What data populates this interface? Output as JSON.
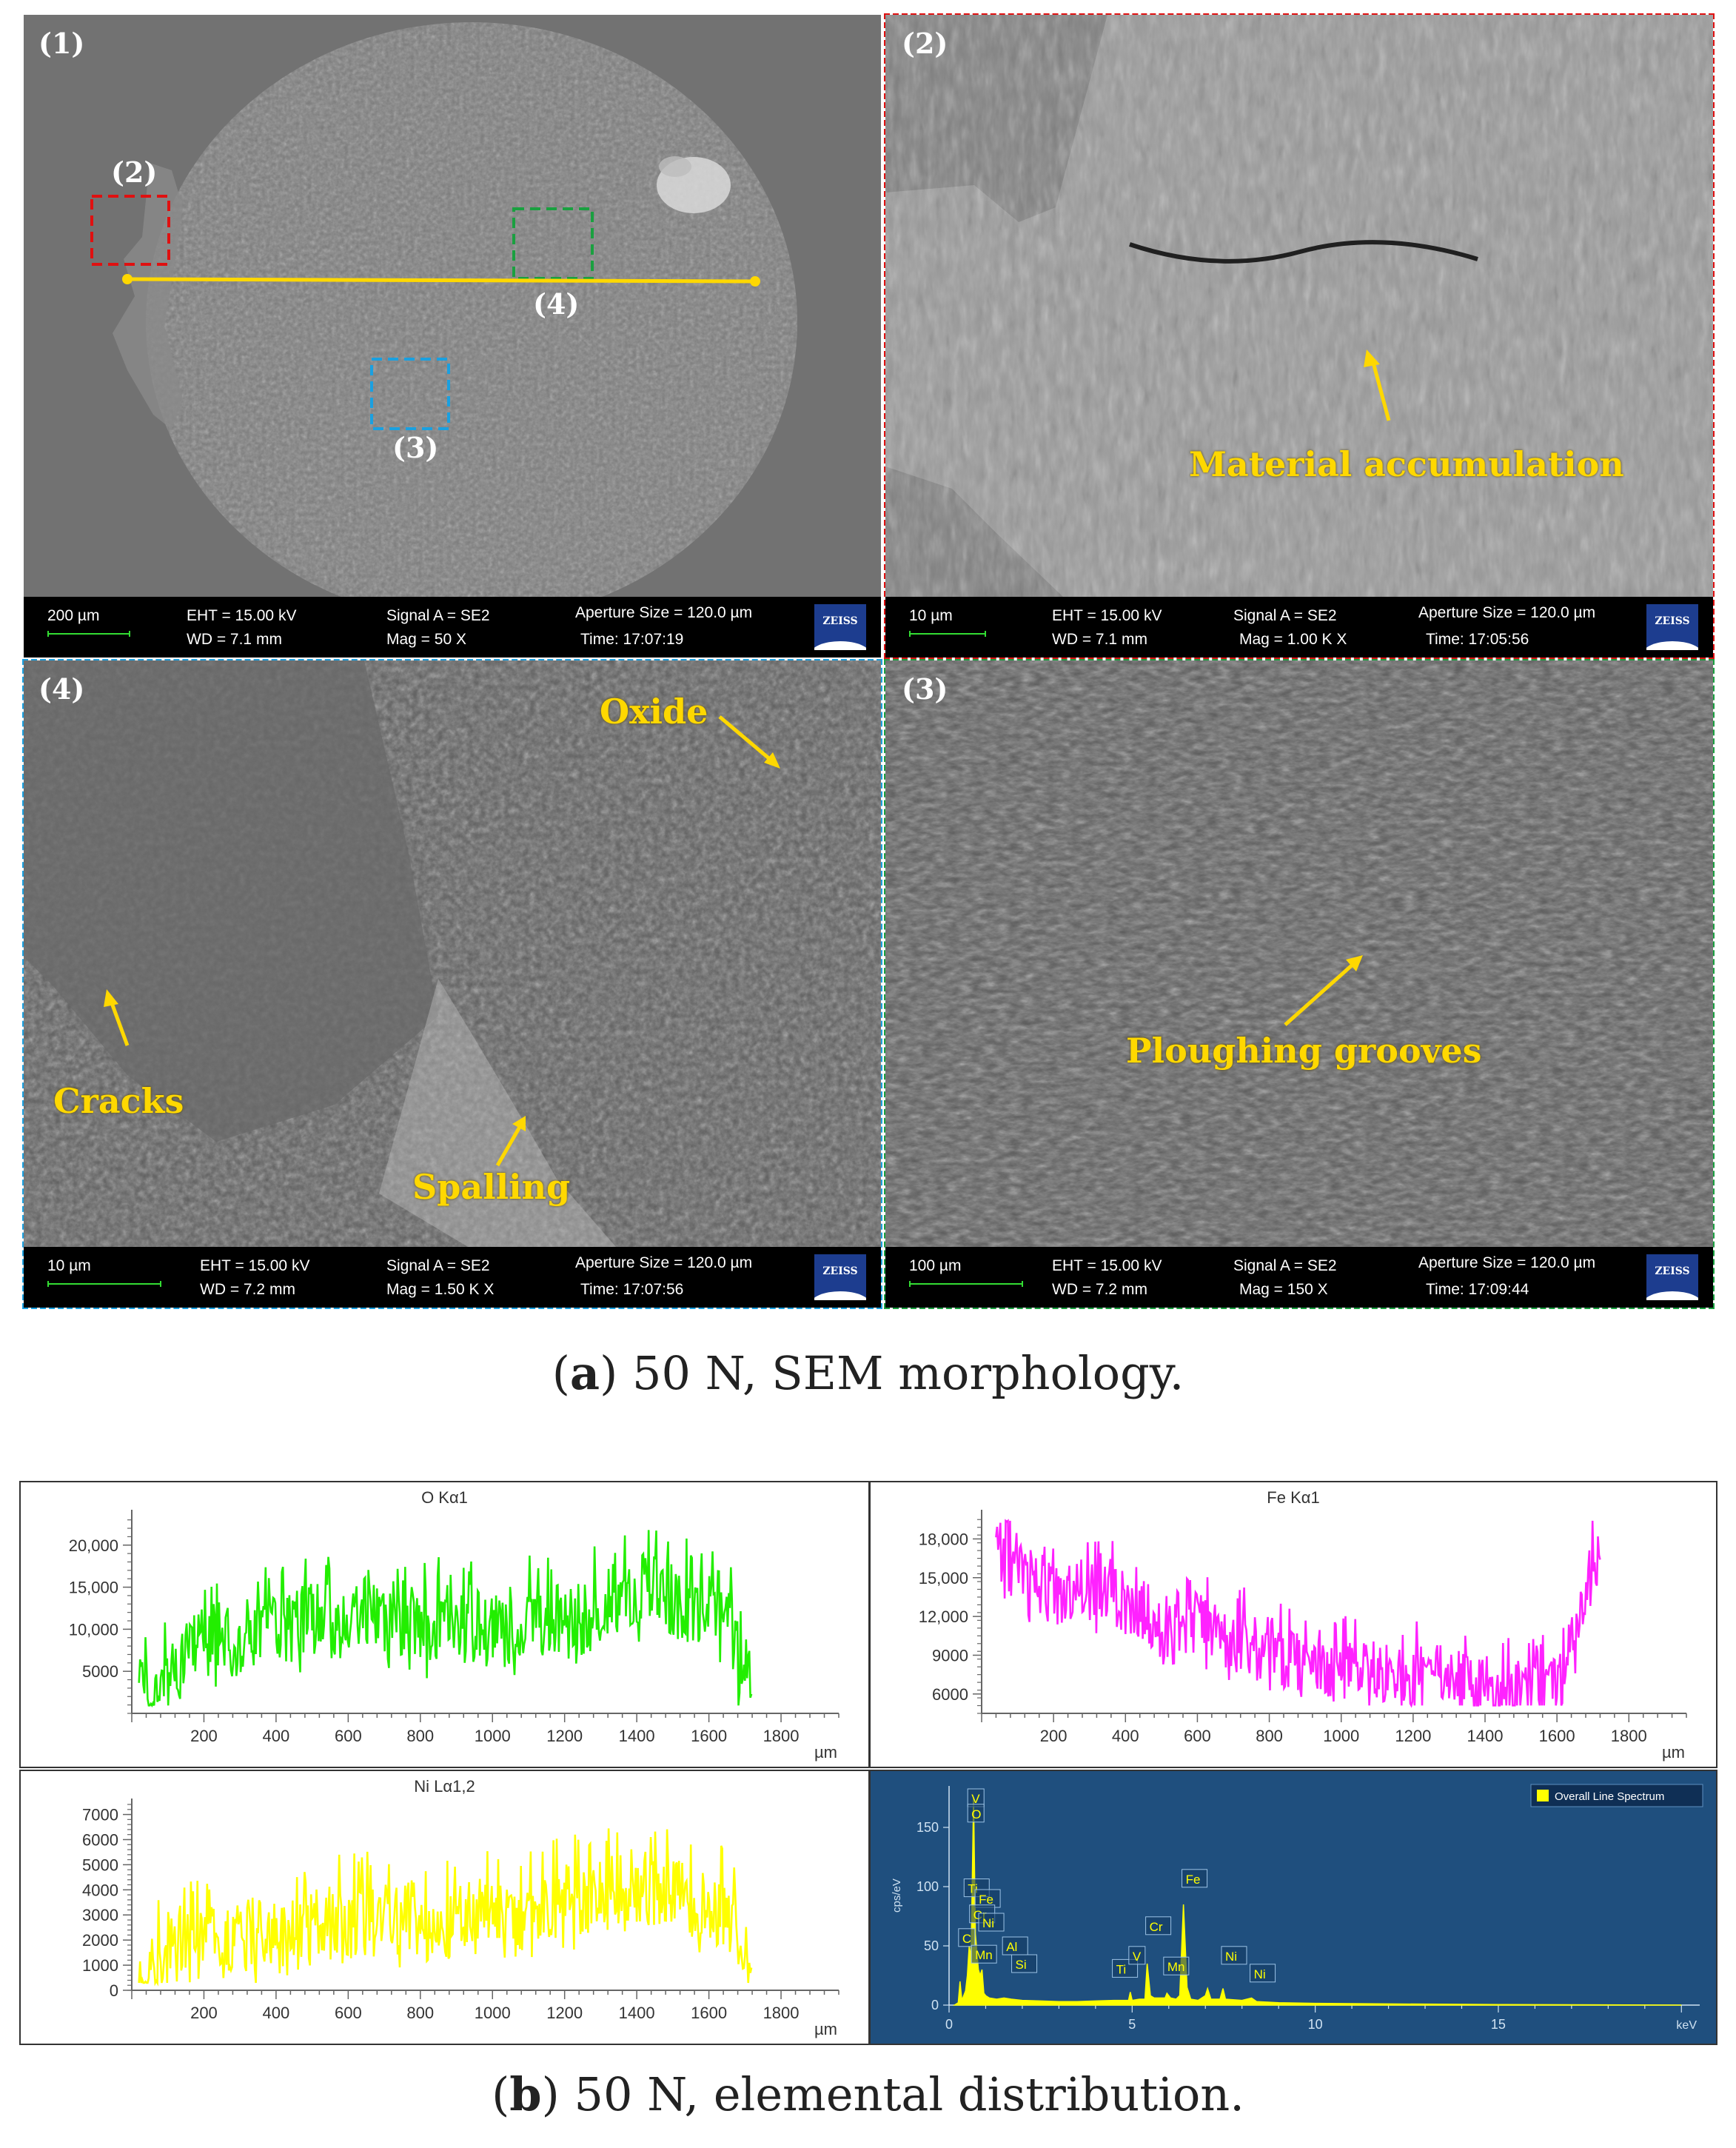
{
  "sem_panels": [
    {
      "label": "(1)",
      "info": {
        "scale": "200 µm",
        "eht": "EHT = 15.00 kV",
        "wd": "WD = 7.1 mm",
        "signal": "Signal A = SE2",
        "mag": "Mag =    50 X",
        "aperture": "Aperture Size = 120.0 µm",
        "time": "Time: 17:07:19"
      },
      "box_labels": [
        "(2)",
        "(4)",
        "(3)"
      ]
    },
    {
      "label": "(2)",
      "info": {
        "scale": "10 µm",
        "eht": "EHT = 15.00 kV",
        "wd": "WD = 7.1 mm",
        "signal": "Signal A = SE2",
        "mag": "Mag =   1.00 K X",
        "aperture": "Aperture Size = 120.0 µm",
        "time": "Time: 17:05:56"
      },
      "annotations": [
        "Material accumulation"
      ]
    },
    {
      "label": "(4)",
      "info": {
        "scale": "10 µm",
        "eht": "EHT = 15.00 kV",
        "wd": "WD = 7.2 mm",
        "signal": "Signal A = SE2",
        "mag": "Mag =   1.50 K X",
        "aperture": "Aperture Size = 120.0 µm",
        "time": "Time: 17:07:56"
      },
      "annotations": [
        "Oxide",
        "Cracks",
        "Spalling"
      ]
    },
    {
      "label": "(3)",
      "info": {
        "scale": "100 µm",
        "eht": "EHT = 15.00 kV",
        "wd": "WD = 7.2 mm",
        "signal": "Signal A = SE2",
        "mag": "Mag =   150 X",
        "aperture": "Aperture Size = 120.0 µm",
        "time": "Time: 17:09:44"
      },
      "annotations": [
        "Ploughing grooves"
      ]
    }
  ],
  "zeiss_logo": "ZEISS",
  "captions": {
    "a_letter": "a",
    "a_text": " 50 N, SEM morphology.",
    "b_letter": "b",
    "b_text": " 50 N, elemental distribution."
  },
  "colors": {
    "yellow": "#ffd800",
    "o_line": "#22ee00",
    "fe_line": "#ff22ff",
    "ni_line": "#ffff00",
    "spectrum_bg": "#1f4f7e",
    "box2": "#e01010",
    "box3": "#1aa0e0",
    "box4": "#1aa040"
  },
  "chart_data": [
    {
      "type": "line",
      "title": "O Kα1",
      "xlabel": "µm",
      "x_ticks": [
        200,
        400,
        600,
        800,
        1000,
        1200,
        1400,
        1600,
        1800
      ],
      "y_ticks": [
        5000,
        10000,
        15000,
        20000
      ],
      "y_tick_labels": [
        "5000",
        "10,000",
        "15,000",
        "20,000"
      ],
      "xlim": [
        0,
        1960
      ],
      "ylim": [
        0,
        23500
      ],
      "grid": false,
      "series": [
        {
          "x_start": 20,
          "x_end": 1720,
          "envelope": [
            [
              20,
              2000
            ],
            [
              60,
              2500
            ],
            [
              100,
              5000
            ],
            [
              140,
              6000
            ],
            [
              180,
              8000
            ],
            [
              220,
              9000
            ],
            [
              260,
              8500
            ],
            [
              300,
              9000
            ],
            [
              340,
              10000
            ],
            [
              380,
              9500
            ],
            [
              420,
              10500
            ],
            [
              460,
              11000
            ],
            [
              500,
              11500
            ],
            [
              540,
              12000
            ],
            [
              580,
              10500
            ],
            [
              620,
              12000
            ],
            [
              660,
              11500
            ],
            [
              700,
              11000
            ],
            [
              740,
              11500
            ],
            [
              780,
              11000
            ],
            [
              820,
              10000
            ],
            [
              860,
              11000
            ],
            [
              900,
              10500
            ],
            [
              940,
              11500
            ],
            [
              980,
              11000
            ],
            [
              1020,
              10000
            ],
            [
              1060,
              9000
            ],
            [
              1100,
              11000
            ],
            [
              1140,
              10500
            ],
            [
              1180,
              11500
            ],
            [
              1220,
              12000
            ],
            [
              1260,
              11000
            ],
            [
              1300,
              13000
            ],
            [
              1340,
              13500
            ],
            [
              1380,
              14000
            ],
            [
              1420,
              14500
            ],
            [
              1460,
              14000
            ],
            [
              1500,
              13500
            ],
            [
              1540,
              13000
            ],
            [
              1580,
              12500
            ],
            [
              1620,
              13000
            ],
            [
              1660,
              10000
            ],
            [
              1690,
              6000
            ],
            [
              1720,
              2500
            ]
          ],
          "amplitude": 4500
        }
      ]
    },
    {
      "type": "line",
      "title": "Fe Kα1",
      "xlabel": "µm",
      "x_ticks": [
        200,
        400,
        600,
        800,
        1000,
        1200,
        1400,
        1600,
        1800
      ],
      "y_ticks": [
        6000,
        9000,
        12000,
        15000,
        18000
      ],
      "y_tick_labels": [
        "6000",
        "9000",
        "12,000",
        "15,000",
        "18,000"
      ],
      "xlim": [
        0,
        1960
      ],
      "ylim": [
        4500,
        19800
      ],
      "grid": false,
      "series": [
        {
          "x_start": 40,
          "x_end": 1720,
          "envelope": [
            [
              40,
              18000
            ],
            [
              80,
              15500
            ],
            [
              120,
              15000
            ],
            [
              160,
              14500
            ],
            [
              200,
              14000
            ],
            [
              240,
              13500
            ],
            [
              280,
              14000
            ],
            [
              320,
              13500
            ],
            [
              360,
              14000
            ],
            [
              400,
              13000
            ],
            [
              440,
              12500
            ],
            [
              480,
              12000
            ],
            [
              520,
              11000
            ],
            [
              560,
              10500
            ],
            [
              600,
              11500
            ],
            [
              640,
              11000
            ],
            [
              680,
              10500
            ],
            [
              720,
              10000
            ],
            [
              760,
              9500
            ],
            [
              800,
              9500
            ],
            [
              840,
              9000
            ],
            [
              880,
              8500
            ],
            [
              920,
              8000
            ],
            [
              960,
              7800
            ],
            [
              1000,
              7500
            ],
            [
              1040,
              8500
            ],
            [
              1080,
              8000
            ],
            [
              1120,
              7800
            ],
            [
              1160,
              7500
            ],
            [
              1200,
              7200
            ],
            [
              1240,
              7500
            ],
            [
              1280,
              7300
            ],
            [
              1320,
              7000
            ],
            [
              1360,
              6800
            ],
            [
              1400,
              6500
            ],
            [
              1440,
              6300
            ],
            [
              1480,
              6200
            ],
            [
              1520,
              6100
            ],
            [
              1560,
              6200
            ],
            [
              1600,
              6500
            ],
            [
              1640,
              9500
            ],
            [
              1680,
              14000
            ],
            [
              1720,
              17000
            ]
          ],
          "amplitude": 2500
        }
      ]
    },
    {
      "type": "line",
      "title": "Ni Lα1,2",
      "xlabel": "µm",
      "x_ticks": [
        200,
        400,
        600,
        800,
        1000,
        1200,
        1400,
        1600,
        1800
      ],
      "y_ticks": [
        0,
        1000,
        2000,
        3000,
        4000,
        5000,
        6000,
        7000
      ],
      "y_tick_labels": [
        "0",
        "1000",
        "2000",
        "3000",
        "4000",
        "5000",
        "6000",
        "7000"
      ],
      "xlim": [
        0,
        1960
      ],
      "ylim": [
        0,
        7400
      ],
      "grid": false,
      "series": [
        {
          "x_start": 20,
          "x_end": 1720,
          "envelope": [
            [
              20,
              400
            ],
            [
              60,
              900
            ],
            [
              100,
              1300
            ],
            [
              140,
              1600
            ],
            [
              180,
              1900
            ],
            [
              220,
              2000
            ],
            [
              260,
              1900
            ],
            [
              300,
              2100
            ],
            [
              340,
              2300
            ],
            [
              380,
              2400
            ],
            [
              420,
              2500
            ],
            [
              460,
              2700
            ],
            [
              500,
              2900
            ],
            [
              540,
              2800
            ],
            [
              580,
              3000
            ],
            [
              620,
              2800
            ],
            [
              660,
              2900
            ],
            [
              700,
              2700
            ],
            [
              740,
              2800
            ],
            [
              780,
              2900
            ],
            [
              820,
              2700
            ],
            [
              860,
              2800
            ],
            [
              900,
              2700
            ],
            [
              940,
              2900
            ],
            [
              980,
              3000
            ],
            [
              1020,
              2800
            ],
            [
              1060,
              2700
            ],
            [
              1100,
              3000
            ],
            [
              1140,
              3200
            ],
            [
              1180,
              3400
            ],
            [
              1220,
              3600
            ],
            [
              1260,
              3500
            ],
            [
              1300,
              3700
            ],
            [
              1340,
              3900
            ],
            [
              1380,
              4100
            ],
            [
              1420,
              4300
            ],
            [
              1460,
              4000
            ],
            [
              1500,
              3800
            ],
            [
              1540,
              3600
            ],
            [
              1580,
              3400
            ],
            [
              1620,
              3300
            ],
            [
              1660,
              2800
            ],
            [
              1700,
              1500
            ],
            [
              1720,
              600
            ]
          ],
          "amplitude": 1500
        }
      ]
    },
    {
      "type": "line",
      "title": "",
      "legend": [
        "Overall Line Spectrum"
      ],
      "legend_position": "top-right",
      "xlabel": "keV",
      "ylabel": "cps/eV",
      "x_ticks": [
        0,
        5,
        10,
        15
      ],
      "y_ticks": [
        0,
        50,
        100,
        150
      ],
      "xlim": [
        0,
        20.5
      ],
      "ylim": [
        0,
        185
      ],
      "grid": false,
      "series": [
        {
          "name": "Overall Line Spectrum",
          "points": [
            [
              0.15,
              0
            ],
            [
              0.25,
              2
            ],
            [
              0.3,
              20
            ],
            [
              0.35,
              4
            ],
            [
              0.45,
              12
            ],
            [
              0.5,
              25
            ],
            [
              0.55,
              50
            ],
            [
              0.6,
              40
            ],
            [
              0.64,
              120
            ],
            [
              0.67,
              175
            ],
            [
              0.72,
              60
            ],
            [
              0.8,
              30
            ],
            [
              0.85,
              25
            ],
            [
              0.9,
              30
            ],
            [
              0.95,
              10
            ],
            [
              1.0,
              8
            ],
            [
              1.1,
              6
            ],
            [
              1.3,
              5
            ],
            [
              1.5,
              6
            ],
            [
              1.7,
              5
            ],
            [
              2.0,
              4
            ],
            [
              2.5,
              3.5
            ],
            [
              3.0,
              3
            ],
            [
              3.5,
              3
            ],
            [
              4.0,
              3.5
            ],
            [
              4.5,
              4
            ],
            [
              4.9,
              4
            ],
            [
              4.95,
              11
            ],
            [
              5.0,
              4
            ],
            [
              5.2,
              5
            ],
            [
              5.35,
              5
            ],
            [
              5.41,
              35
            ],
            [
              5.5,
              8
            ],
            [
              5.6,
              6
            ],
            [
              5.9,
              6
            ],
            [
              5.95,
              10
            ],
            [
              6.05,
              6
            ],
            [
              6.2,
              5
            ],
            [
              6.3,
              8
            ],
            [
              6.4,
              85
            ],
            [
              6.5,
              15
            ],
            [
              6.6,
              5
            ],
            [
              6.8,
              4
            ],
            [
              7.0,
              8
            ],
            [
              7.06,
              14
            ],
            [
              7.15,
              5
            ],
            [
              7.4,
              5
            ],
            [
              7.48,
              14
            ],
            [
              7.55,
              5
            ],
            [
              8.0,
              4
            ],
            [
              8.26,
              6
            ],
            [
              8.4,
              3
            ],
            [
              9.0,
              2
            ],
            [
              10.0,
              1.5
            ],
            [
              12.0,
              1
            ],
            [
              15.0,
              0.5
            ],
            [
              20.0,
              0
            ]
          ]
        }
      ],
      "peak_labels": [
        {
          "label": "V",
          "x": 0.55,
          "y": 170
        },
        {
          "label": "O",
          "x": 0.55,
          "y": 157
        },
        {
          "label": "Ti",
          "x": 0.45,
          "y": 94
        },
        {
          "label": "Fe",
          "x": 0.75,
          "y": 85
        },
        {
          "label": "Cr",
          "x": 0.6,
          "y": 72
        },
        {
          "label": "Ni",
          "x": 0.85,
          "y": 65
        },
        {
          "label": "C",
          "x": 0.3,
          "y": 52
        },
        {
          "label": "Al",
          "x": 1.5,
          "y": 45
        },
        {
          "label": "Mn",
          "x": 0.65,
          "y": 38
        },
        {
          "label": "Si",
          "x": 1.75,
          "y": 30
        },
        {
          "label": "Ti",
          "x": 4.5,
          "y": 26
        },
        {
          "label": "V",
          "x": 4.95,
          "y": 37
        },
        {
          "label": "Cr",
          "x": 5.41,
          "y": 62
        },
        {
          "label": "Mn",
          "x": 5.9,
          "y": 28
        },
        {
          "label": "Fe",
          "x": 6.4,
          "y": 102
        },
        {
          "label": "Ni",
          "x": 7.48,
          "y": 37
        },
        {
          "label": "Ni",
          "x": 8.26,
          "y": 22
        }
      ]
    }
  ]
}
